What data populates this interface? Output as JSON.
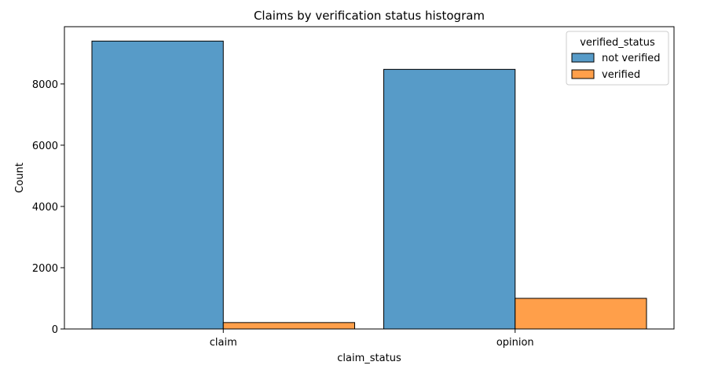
{
  "chart_data": {
    "type": "bar",
    "title": "Claims by verification status histogram",
    "xlabel": "claim_status",
    "ylabel": "Count",
    "categories": [
      "claim",
      "opinion"
    ],
    "series": [
      {
        "name": "not verified",
        "values": [
          9399,
          8476
        ],
        "color": "#579bc8"
      },
      {
        "name": "verified",
        "values": [
          209,
          1000
        ],
        "color": "#ff9f4a"
      }
    ],
    "ylim": [
      0,
      9869
    ],
    "yticks": [
      0,
      2000,
      4000,
      6000,
      8000
    ],
    "legend": {
      "title": "verified_status",
      "placement": "top-right"
    },
    "grid": false
  }
}
